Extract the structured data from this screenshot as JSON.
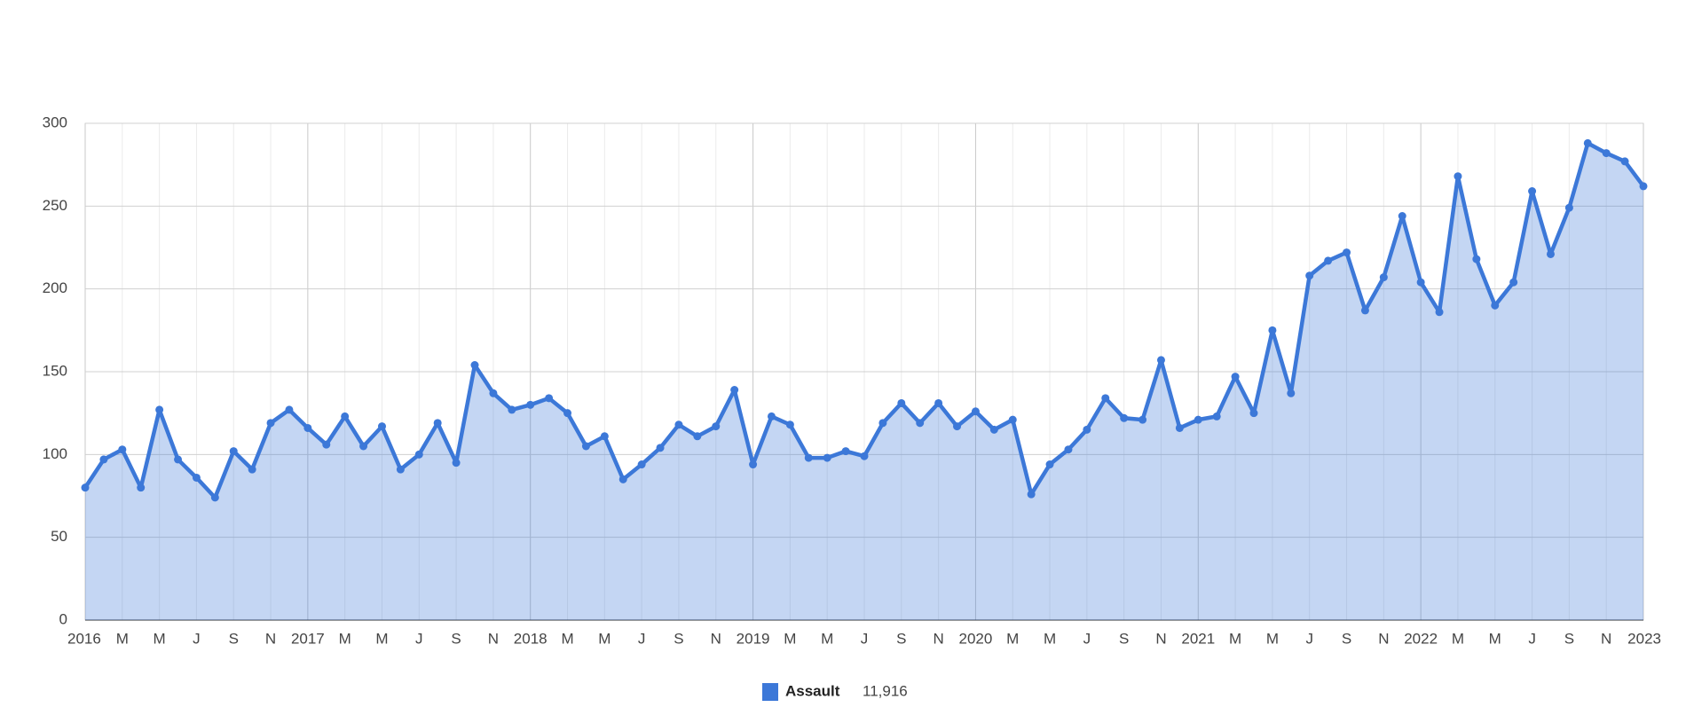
{
  "chart_data": {
    "type": "area",
    "categories": [
      "2016",
      null,
      "M",
      null,
      "M",
      null,
      "J",
      null,
      "S",
      null,
      "N",
      null,
      "2017",
      null,
      "M",
      null,
      "M",
      null,
      "J",
      null,
      "S",
      null,
      "N",
      null,
      "2018",
      null,
      "M",
      null,
      "M",
      null,
      "J",
      null,
      "S",
      null,
      "N",
      null,
      "2019",
      null,
      "M",
      null,
      "M",
      null,
      "J",
      null,
      "S",
      null,
      "N",
      null,
      "2020",
      null,
      "M",
      null,
      "M",
      null,
      "J",
      null,
      "S",
      null,
      "N",
      null,
      "2021",
      null,
      "M",
      null,
      "M",
      null,
      "J",
      null,
      "S",
      null,
      "N",
      null,
      "2022",
      null,
      "M",
      null,
      "M",
      null,
      "J",
      null,
      "S",
      null,
      "N",
      null,
      "2023"
    ],
    "series": [
      {
        "name": "Assault",
        "color": "#3c78d8",
        "legend_value": "11,916",
        "values": [
          80,
          97,
          103,
          80,
          127,
          97,
          86,
          74,
          102,
          91,
          119,
          127,
          116,
          106,
          123,
          105,
          117,
          91,
          100,
          119,
          95,
          154,
          137,
          127,
          130,
          134,
          125,
          105,
          111,
          85,
          94,
          104,
          118,
          111,
          117,
          139,
          94,
          123,
          118,
          98,
          98,
          102,
          99,
          119,
          131,
          119,
          131,
          117,
          126,
          115,
          121,
          76,
          94,
          103,
          115,
          134,
          122,
          121,
          157,
          116,
          121,
          123,
          147,
          125,
          175,
          137,
          208,
          217,
          222,
          187,
          207,
          244,
          204,
          186,
          268,
          218,
          190,
          204,
          259,
          221,
          249,
          288,
          282,
          277,
          262
        ]
      }
    ],
    "ylim": [
      0,
      300
    ],
    "yticks": [
      0,
      50,
      100,
      150,
      200,
      250,
      300
    ],
    "grid": true,
    "legend": "bottom"
  }
}
